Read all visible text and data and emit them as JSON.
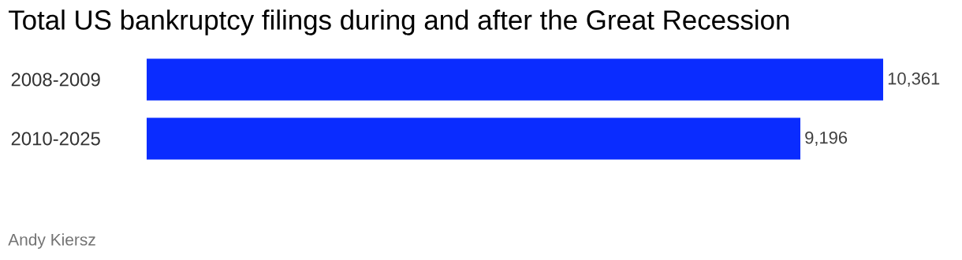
{
  "chart_data": {
    "type": "bar",
    "orientation": "horizontal",
    "title": "Total US bankruptcy filings during and after the Great Recession",
    "categories": [
      "2008-2009",
      "2010-2025"
    ],
    "values": [
      10361,
      9196
    ],
    "value_labels": [
      "10,361",
      "9,196"
    ],
    "color": "#0a2cff",
    "annotations": [
      "Andy Kiersz"
    ]
  }
}
